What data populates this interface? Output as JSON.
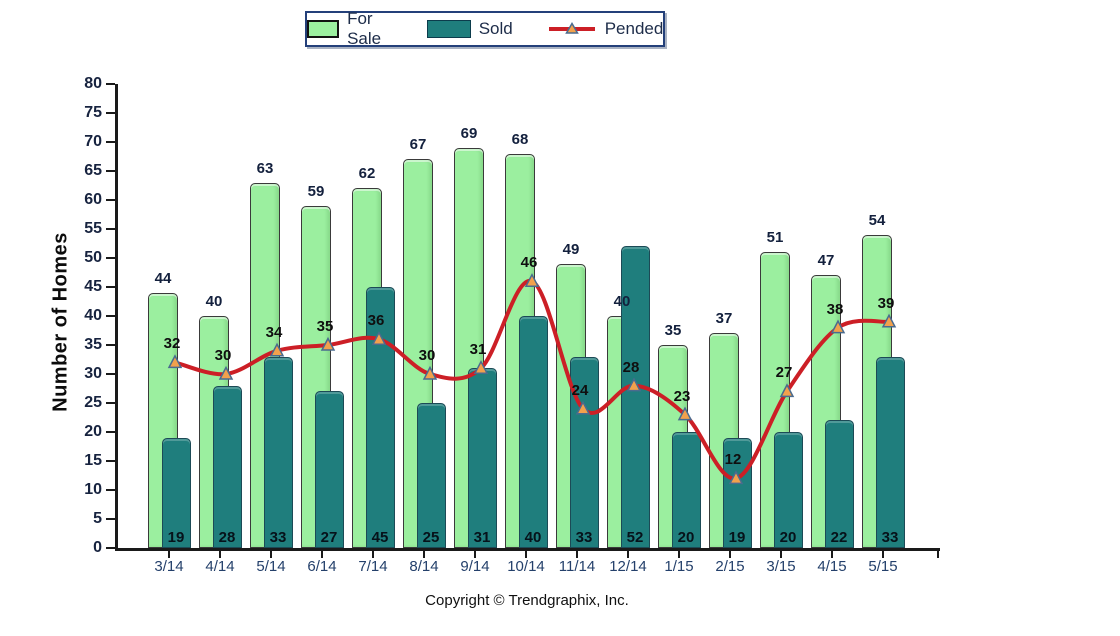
{
  "legend": {
    "items": [
      {
        "label": "For Sale"
      },
      {
        "label": "Sold"
      },
      {
        "label": "Pended"
      }
    ]
  },
  "footer": {
    "copyright": "Copyright © Trendgraphix, Inc."
  },
  "colors": {
    "for_sale": "#9bef9f",
    "sold": "#1f7e7d",
    "pended_line": "#cc1f26",
    "marker_fill": "#f2a14c",
    "marker_stroke": "#4a6b8f"
  },
  "chart_data": {
    "type": "bar",
    "title": "",
    "xlabel": "",
    "ylabel": "Number of Homes",
    "categories": [
      "3/14",
      "4/14",
      "5/14",
      "6/14",
      "7/14",
      "8/14",
      "9/14",
      "10/14",
      "11/14",
      "12/14",
      "1/15",
      "2/15",
      "3/15",
      "4/15",
      "5/15"
    ],
    "series": [
      {
        "name": "For Sale",
        "type": "bar",
        "color": "#9bef9f",
        "values": [
          44,
          40,
          63,
          59,
          62,
          67,
          69,
          68,
          49,
          40,
          35,
          37,
          51,
          47,
          54
        ]
      },
      {
        "name": "Sold",
        "type": "bar",
        "color": "#1f7e7d",
        "values": [
          19,
          28,
          33,
          27,
          45,
          25,
          31,
          40,
          33,
          52,
          20,
          19,
          20,
          22,
          33
        ]
      },
      {
        "name": "Pended",
        "type": "line",
        "color": "#cc1f26",
        "marker": "triangle",
        "marker_color": "#f2a14c",
        "values": [
          32,
          30,
          34,
          35,
          36,
          30,
          31,
          46,
          24,
          28,
          23,
          12,
          27,
          38,
          39
        ]
      }
    ],
    "ylim": [
      0,
      80
    ],
    "ytick_step": 5,
    "grid": false,
    "legend_position": "top"
  }
}
